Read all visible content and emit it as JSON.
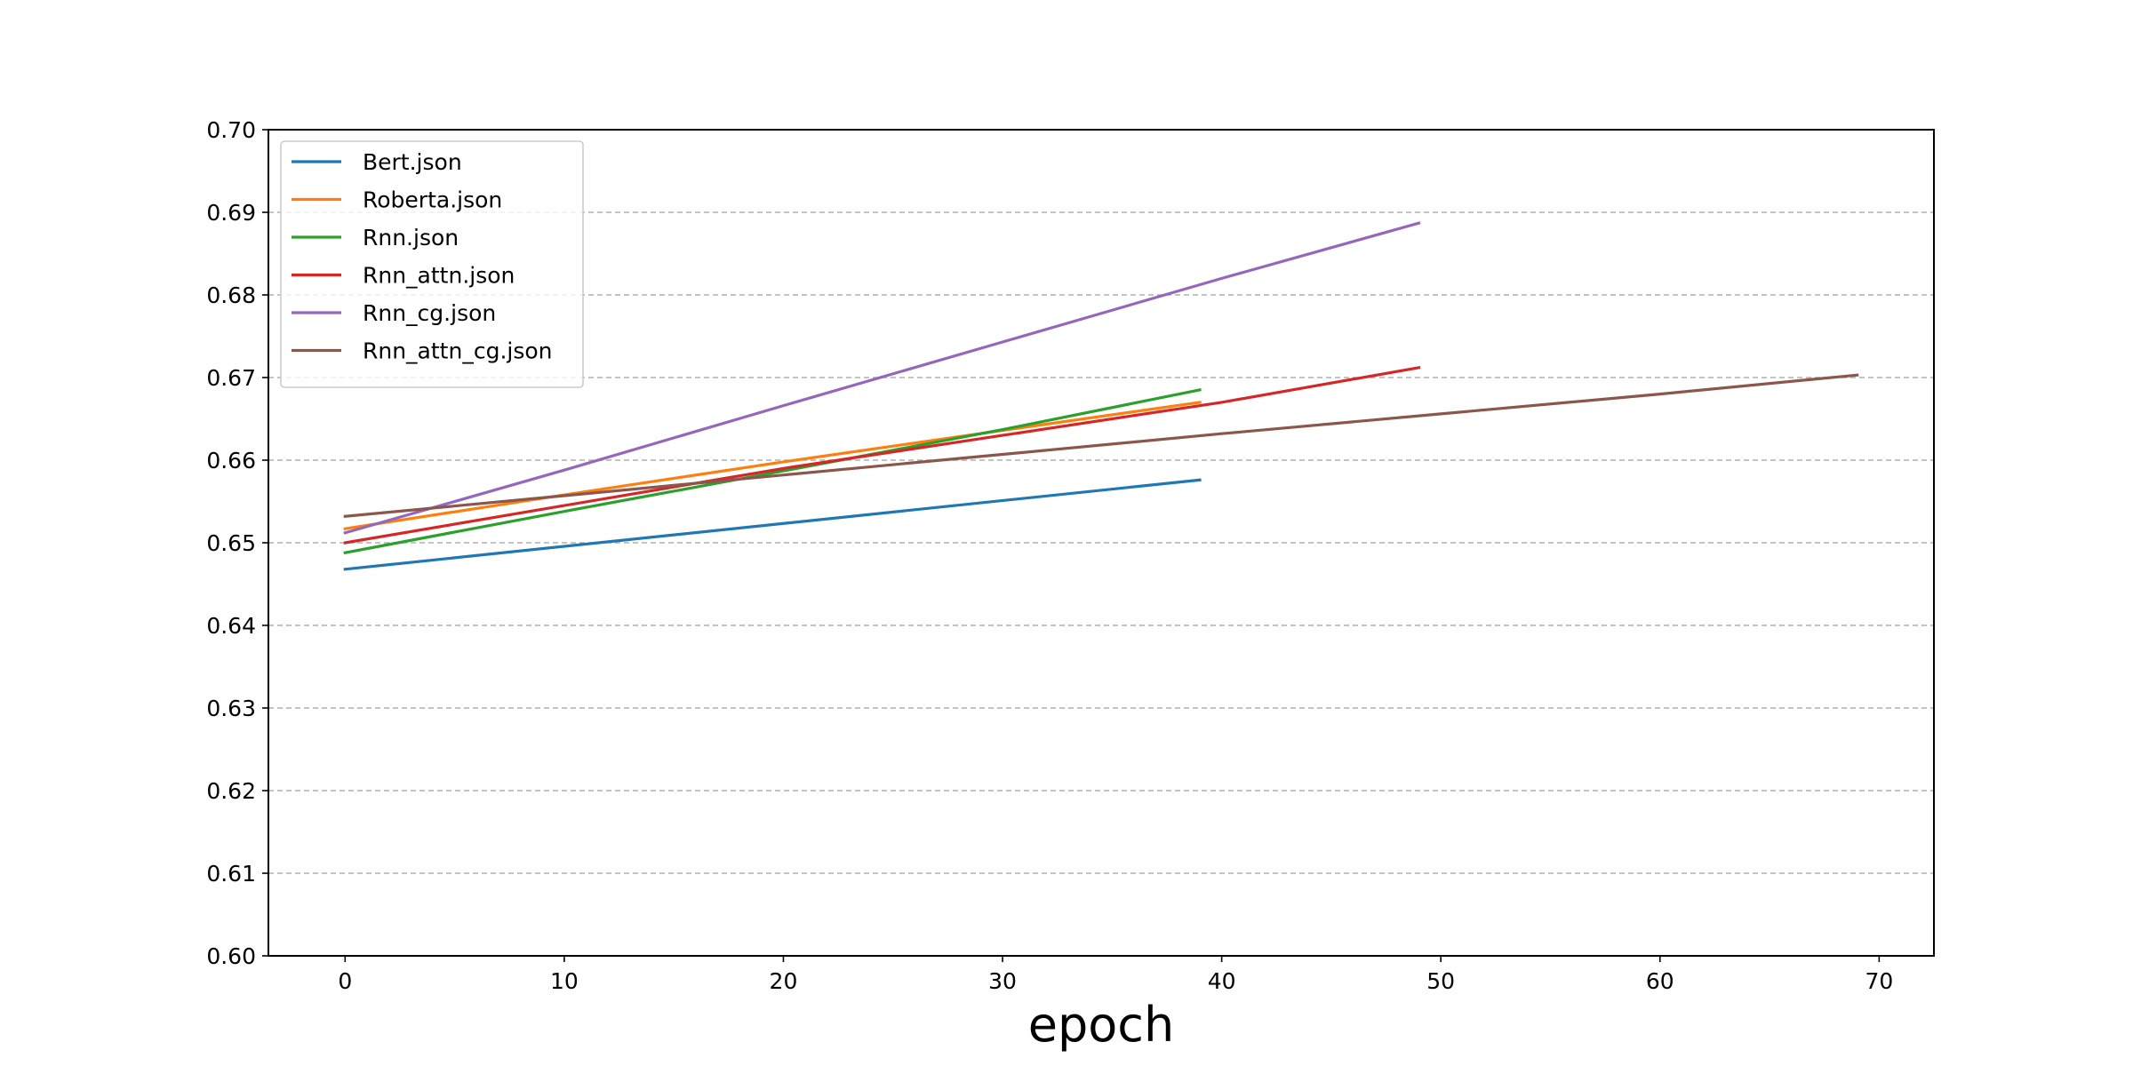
{
  "chart_data": {
    "type": "line",
    "title": "",
    "xlabel": "epoch",
    "ylabel": "",
    "xlim": [
      -3.5,
      72.5
    ],
    "ylim": [
      0.6,
      0.7
    ],
    "xticks": [
      0,
      10,
      20,
      30,
      40,
      50,
      60,
      70
    ],
    "xtick_labels": [
      "0",
      "10",
      "20",
      "30",
      "40",
      "50",
      "60",
      "70"
    ],
    "yticks": [
      0.6,
      0.61,
      0.62,
      0.63,
      0.64,
      0.65,
      0.66,
      0.67,
      0.68,
      0.69,
      0.7
    ],
    "ytick_labels": [
      "0.60",
      "0.61",
      "0.62",
      "0.63",
      "0.64",
      "0.65",
      "0.66",
      "0.67",
      "0.68",
      "0.69",
      "0.70"
    ],
    "grid": "horizontal dashed",
    "legend_position": "upper-left",
    "series": [
      {
        "name": "Bert.json",
        "color": "#1f77b4",
        "x": [
          0,
          39
        ],
        "y": [
          0.6468,
          0.6576
        ]
      },
      {
        "name": "Roberta.json",
        "color": "#ff7f0e",
        "x": [
          0,
          10,
          20,
          30,
          39
        ],
        "y": [
          0.6517,
          0.6558,
          0.6598,
          0.6636,
          0.667
        ]
      },
      {
        "name": "Rnn.json",
        "color": "#2ca02c",
        "x": [
          0,
          10,
          20,
          30,
          39
        ],
        "y": [
          0.6488,
          0.6538,
          0.6587,
          0.6637,
          0.6685
        ]
      },
      {
        "name": "Rnn_attn.json",
        "color": "#d62728",
        "x": [
          0,
          10,
          20,
          30,
          40,
          49
        ],
        "y": [
          0.65,
          0.6545,
          0.659,
          0.663,
          0.667,
          0.6712
        ]
      },
      {
        "name": "Rnn_cg.json",
        "color": "#9467bd",
        "x": [
          0,
          10,
          20,
          30,
          40,
          49
        ],
        "y": [
          0.6512,
          0.6588,
          0.6666,
          0.6743,
          0.682,
          0.6887
        ]
      },
      {
        "name": "Rnn_attn_cg.json",
        "color": "#8c564b",
        "x": [
          0,
          10,
          20,
          30,
          40,
          50,
          60,
          69
        ],
        "y": [
          0.6532,
          0.6557,
          0.6582,
          0.6607,
          0.6632,
          0.6656,
          0.668,
          0.6703
        ]
      }
    ]
  }
}
